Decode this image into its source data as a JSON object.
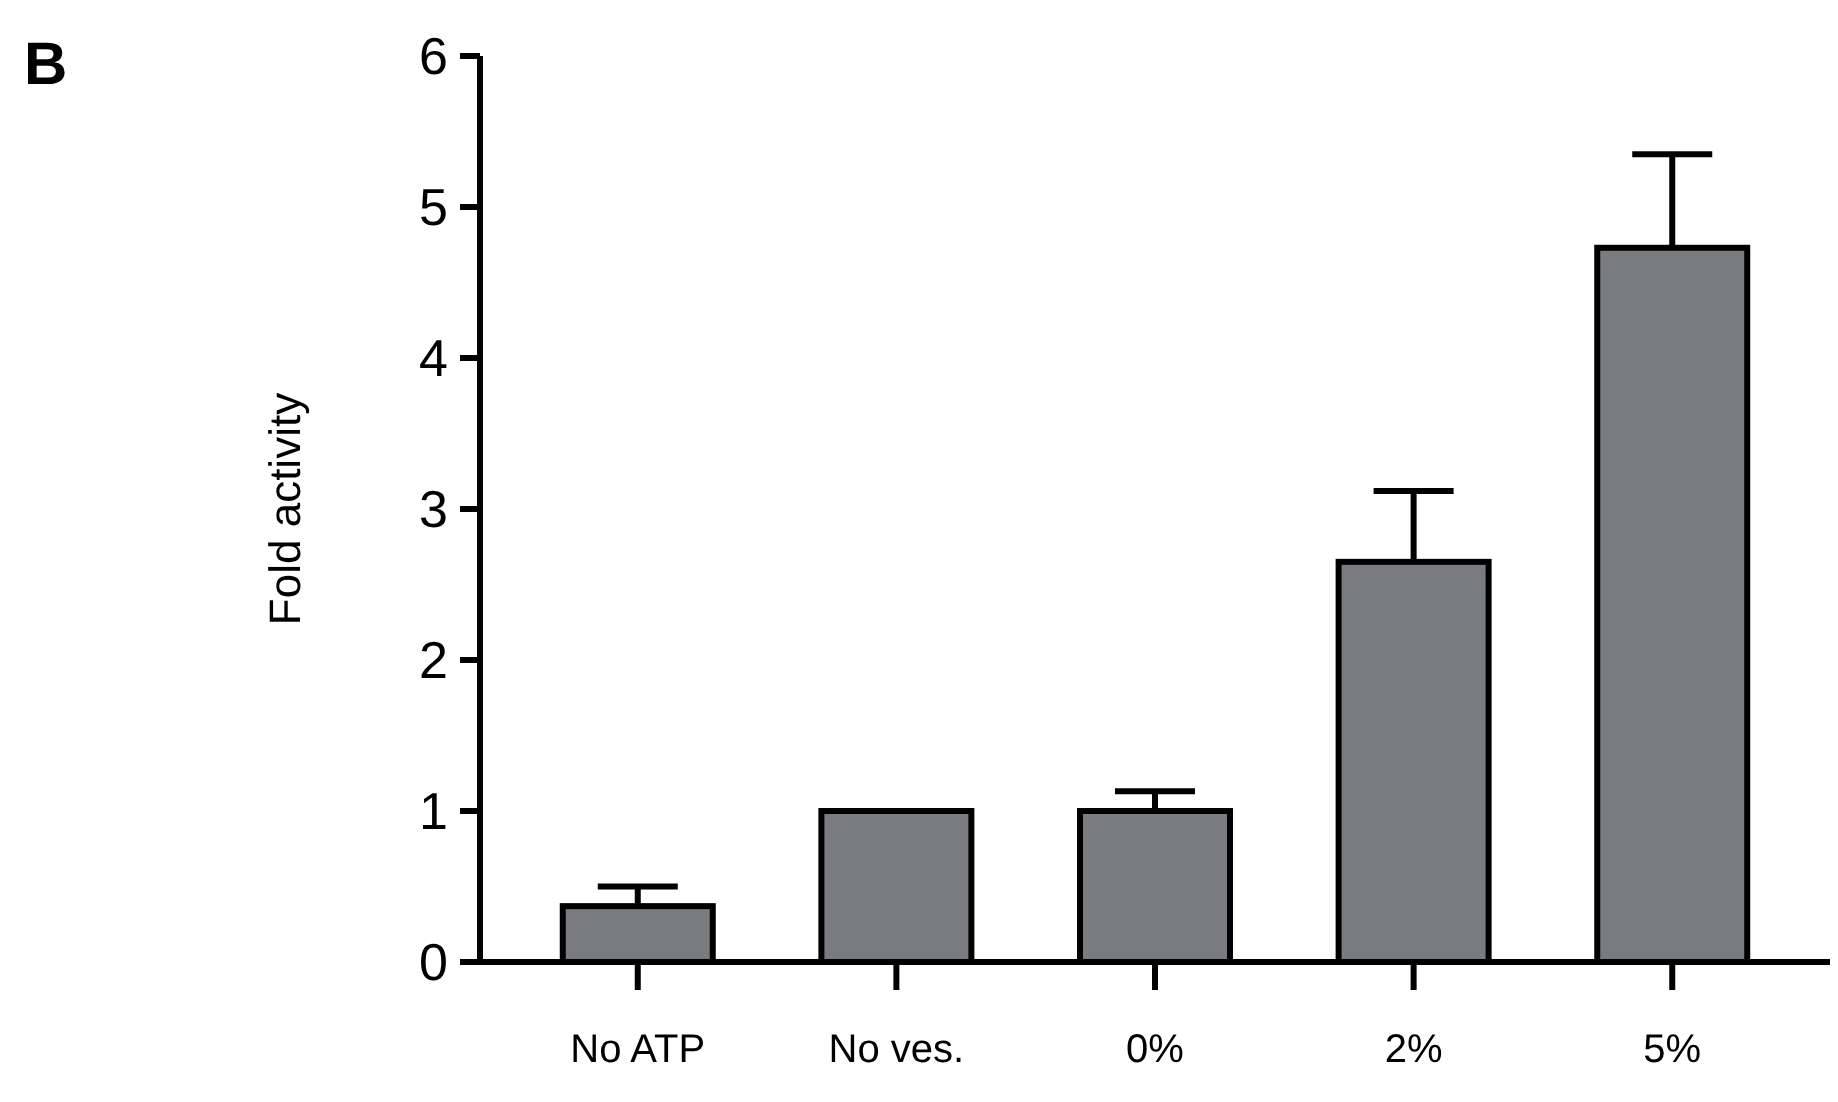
{
  "chart_data": {
    "type": "bar",
    "title": "B",
    "ylabel": "Fold activity",
    "categories": [
      "No ATP",
      "No ves.",
      "0%",
      "2%",
      "5%"
    ],
    "values": [
      0.37,
      1.0,
      1.0,
      2.65,
      4.73
    ],
    "errors": [
      0.13,
      null,
      0.13,
      0.47,
      0.62
    ],
    "color": "#7a7b7e",
    "ylim": [
      0,
      6
    ],
    "yticks": [
      0,
      1,
      2,
      3,
      4,
      5,
      6
    ],
    "grid": false
  }
}
